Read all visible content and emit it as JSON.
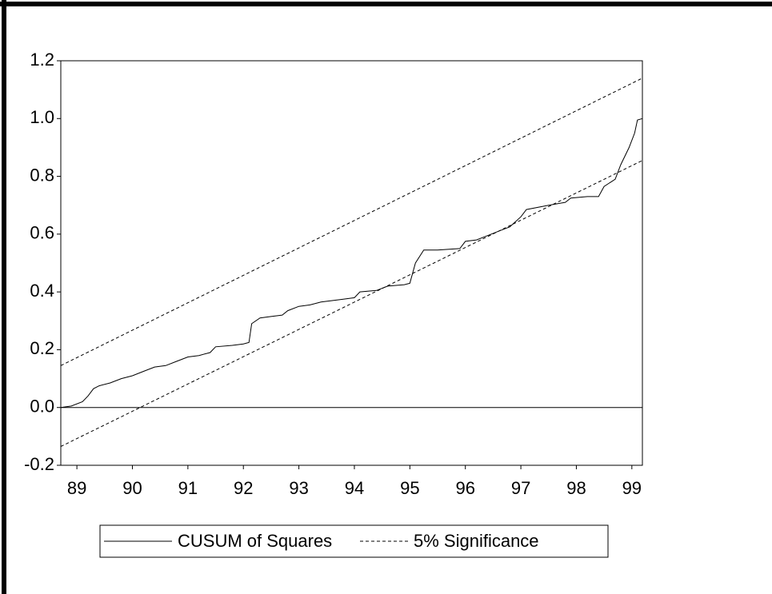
{
  "chart_data": {
    "type": "line",
    "xlim": [
      88.71,
      99.19
    ],
    "xticks": [
      89,
      90,
      91,
      92,
      93,
      94,
      95,
      96,
      97,
      98,
      99
    ],
    "ylim": [
      -0.2,
      1.2
    ],
    "yticks": [
      {
        "value": -0.2,
        "label": "-0.2"
      },
      {
        "value": 0,
        "label": "0.0"
      },
      {
        "value": 0.2,
        "label": "0.2"
      },
      {
        "value": 0.4,
        "label": "0.4"
      },
      {
        "value": 0.6,
        "label": "0.6"
      },
      {
        "value": 0.8,
        "label": "0.8"
      },
      {
        "value": 1.0,
        "label": "1.0"
      },
      {
        "value": 1.2,
        "label": "1.2"
      }
    ],
    "zero_line": true,
    "series": [
      {
        "name": "CUSUM of Squares",
        "color": "#000000",
        "dashed": false,
        "x": [
          88.71,
          88.9,
          89.1,
          89.2,
          89.3,
          89.4,
          89.6,
          89.8,
          90.0,
          90.2,
          90.4,
          90.6,
          90.8,
          91.0,
          91.2,
          91.4,
          91.5,
          91.8,
          92.0,
          92.1,
          92.15,
          92.3,
          92.5,
          92.7,
          92.8,
          93.0,
          93.2,
          93.4,
          93.6,
          93.8,
          94.0,
          94.1,
          94.4,
          94.6,
          94.9,
          95.0,
          95.1,
          95.25,
          95.5,
          95.9,
          96.0,
          96.2,
          96.4,
          96.6,
          96.8,
          97.0,
          97.1,
          97.5,
          97.8,
          97.9,
          98.2,
          98.4,
          98.5,
          98.7,
          98.8,
          98.95,
          99.05,
          99.1,
          99.19
        ],
        "values": [
          0.0,
          0.005,
          0.02,
          0.04,
          0.065,
          0.075,
          0.085,
          0.1,
          0.11,
          0.125,
          0.14,
          0.145,
          0.16,
          0.175,
          0.18,
          0.19,
          0.21,
          0.215,
          0.22,
          0.225,
          0.29,
          0.31,
          0.315,
          0.32,
          0.335,
          0.35,
          0.355,
          0.365,
          0.37,
          0.375,
          0.38,
          0.4,
          0.405,
          0.42,
          0.425,
          0.43,
          0.5,
          0.545,
          0.545,
          0.55,
          0.575,
          0.58,
          0.595,
          0.61,
          0.625,
          0.66,
          0.685,
          0.7,
          0.71,
          0.725,
          0.73,
          0.73,
          0.765,
          0.79,
          0.84,
          0.9,
          0.95,
          0.995,
          1.0
        ]
      },
      {
        "name": "5% Significance",
        "color": "#000000",
        "dashed": true,
        "x": [
          88.71,
          99.19,
          99.19,
          88.71,
          99.19
        ],
        "values": [
          0.145,
          1.14,
          null,
          -0.135,
          0.855
        ]
      }
    ]
  }
}
